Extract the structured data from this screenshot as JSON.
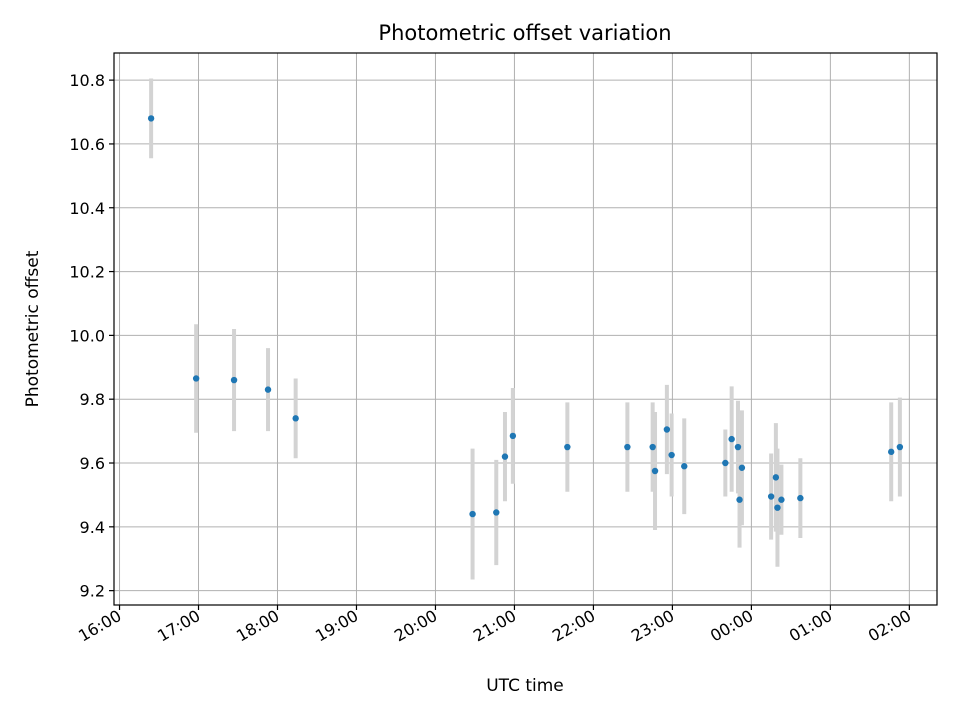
{
  "chart_data": {
    "type": "scatter",
    "title": "Photometric offset variation",
    "xlabel": "UTC time",
    "ylabel": "Photometric offset",
    "grid": true,
    "ylim": [
      9.155,
      10.885
    ],
    "xlim_hours": [
      15.93,
      26.35
    ],
    "yticks": [
      9.2,
      9.4,
      9.6,
      9.8,
      10.0,
      10.2,
      10.4,
      10.6,
      10.8
    ],
    "ytick_labels": [
      "9.2",
      "9.4",
      "9.6",
      "9.8",
      "10.0",
      "10.2",
      "10.4",
      "10.6",
      "10.8"
    ],
    "xticks_hours": [
      16,
      17,
      18,
      19,
      20,
      21,
      22,
      23,
      24,
      25,
      26
    ],
    "xtick_labels": [
      "16:00",
      "17:00",
      "18:00",
      "19:00",
      "20:00",
      "21:00",
      "22:00",
      "23:00",
      "00:00",
      "01:00",
      "02:00"
    ],
    "colors": {
      "point": "#1f77b4",
      "errorbar": "#d3d3d3",
      "grid": "#b0b0b0"
    },
    "points": [
      {
        "t": 16.4,
        "y": 10.68,
        "err": 0.125
      },
      {
        "t": 16.97,
        "y": 9.865,
        "err": 0.17
      },
      {
        "t": 17.45,
        "y": 9.86,
        "err": 0.16
      },
      {
        "t": 17.88,
        "y": 9.83,
        "err": 0.13
      },
      {
        "t": 18.23,
        "y": 9.74,
        "err": 0.125
      },
      {
        "t": 20.47,
        "y": 9.44,
        "err": 0.205
      },
      {
        "t": 20.77,
        "y": 9.445,
        "err": 0.165
      },
      {
        "t": 20.88,
        "y": 9.62,
        "err": 0.14
      },
      {
        "t": 20.98,
        "y": 9.685,
        "err": 0.15
      },
      {
        "t": 21.67,
        "y": 9.65,
        "err": 0.14
      },
      {
        "t": 22.43,
        "y": 9.65,
        "err": 0.14
      },
      {
        "t": 22.75,
        "y": 9.65,
        "err": 0.14
      },
      {
        "t": 22.78,
        "y": 9.575,
        "err": 0.185
      },
      {
        "t": 22.93,
        "y": 9.705,
        "err": 0.14
      },
      {
        "t": 22.99,
        "y": 9.625,
        "err": 0.13
      },
      {
        "t": 23.15,
        "y": 9.59,
        "err": 0.15
      },
      {
        "t": 23.67,
        "y": 9.6,
        "err": 0.105
      },
      {
        "t": 23.75,
        "y": 9.675,
        "err": 0.165
      },
      {
        "t": 23.83,
        "y": 9.65,
        "err": 0.145
      },
      {
        "t": 23.85,
        "y": 9.485,
        "err": 0.15
      },
      {
        "t": 23.88,
        "y": 9.585,
        "err": 0.18
      },
      {
        "t": 24.25,
        "y": 9.495,
        "err": 0.135
      },
      {
        "t": 24.31,
        "y": 9.555,
        "err": 0.17
      },
      {
        "t": 24.33,
        "y": 9.46,
        "err": 0.185
      },
      {
        "t": 24.38,
        "y": 9.485,
        "err": 0.11
      },
      {
        "t": 24.62,
        "y": 9.49,
        "err": 0.125
      },
      {
        "t": 25.77,
        "y": 9.635,
        "err": 0.155
      },
      {
        "t": 25.88,
        "y": 9.65,
        "err": 0.155
      }
    ]
  }
}
